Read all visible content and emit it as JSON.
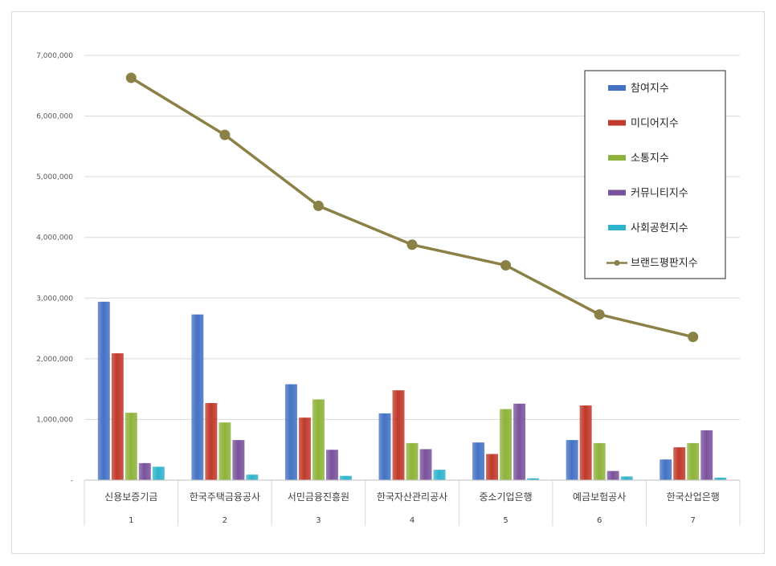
{
  "chart_data": {
    "type": "bar",
    "categories": [
      "신용보증기금",
      "한국주택금융공사",
      "서민금융진흥원",
      "한국자산관리공사",
      "중소기업은행",
      "예금보험공사",
      "한국산업은행"
    ],
    "category_index": [
      "1",
      "2",
      "3",
      "4",
      "5",
      "6",
      "7"
    ],
    "ylim": [
      0,
      7000000
    ],
    "yticks": [
      {
        "value": 0,
        "label": "-"
      },
      {
        "value": 1000000,
        "label": "1,000,000"
      },
      {
        "value": 2000000,
        "label": "2,000,000"
      },
      {
        "value": 3000000,
        "label": "3,000,000"
      },
      {
        "value": 4000000,
        "label": "4,000,000"
      },
      {
        "value": 5000000,
        "label": "5,000,000"
      },
      {
        "value": 6000000,
        "label": "6,000,000"
      },
      {
        "value": 7000000,
        "label": "7,000,000"
      }
    ],
    "grid": true,
    "legend_position": "top-right",
    "series": [
      {
        "name": "참여지수",
        "kind": "bar",
        "color": "#4472c4",
        "values": [
          2940000,
          2730000,
          1580000,
          1100000,
          620000,
          660000,
          340000
        ]
      },
      {
        "name": "미디어지수",
        "kind": "bar",
        "color": "#c0392b",
        "values": [
          2090000,
          1270000,
          1030000,
          1480000,
          430000,
          1230000,
          540000
        ]
      },
      {
        "name": "소통지수",
        "kind": "bar",
        "color": "#8db33a",
        "values": [
          1110000,
          950000,
          1330000,
          610000,
          1170000,
          610000,
          610000
        ]
      },
      {
        "name": "커뮤니티지수",
        "kind": "bar",
        "color": "#7a529c",
        "values": [
          280000,
          660000,
          500000,
          510000,
          1260000,
          150000,
          820000
        ]
      },
      {
        "name": "사회공헌지수",
        "kind": "bar",
        "color": "#2fb3cc",
        "values": [
          220000,
          90000,
          70000,
          170000,
          30000,
          60000,
          40000
        ]
      },
      {
        "name": "브랜드평판지수",
        "kind": "line",
        "color": "#8b8046",
        "values": [
          6630000,
          5690000,
          4520000,
          3880000,
          3540000,
          2730000,
          2360000
        ]
      }
    ]
  }
}
